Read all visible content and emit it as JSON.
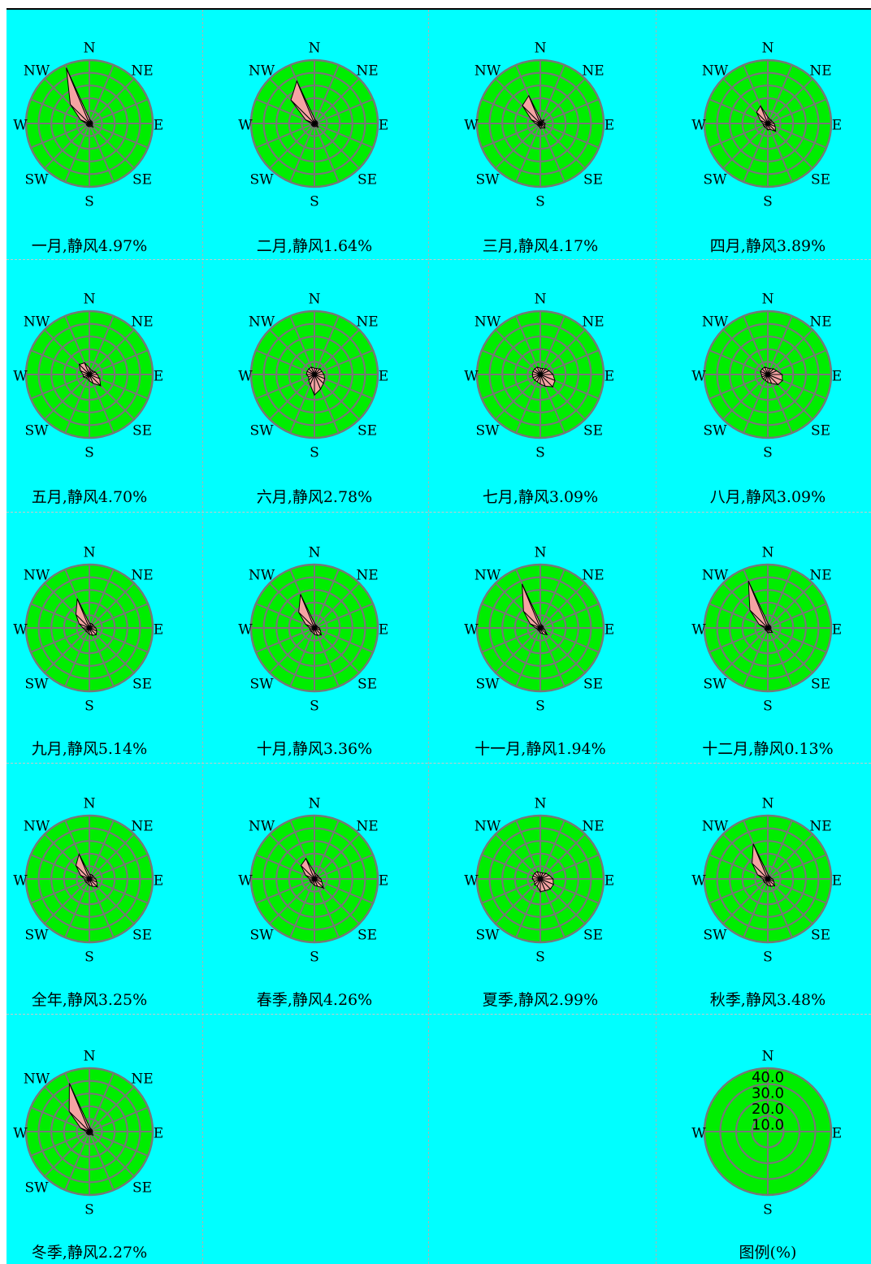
{
  "title": "",
  "colors": {
    "background": "#00ffff",
    "disc": "#00ee00",
    "grid": "#777777",
    "petal": "#f4a3a3",
    "petal_outline": "#000000"
  },
  "chart_data": {
    "type": "wind-rose",
    "directions": [
      "N",
      "NNE",
      "NE",
      "ENE",
      "E",
      "ESE",
      "SE",
      "SSE",
      "S",
      "SSW",
      "SW",
      "WSW",
      "W",
      "WNW",
      "NW",
      "NNW"
    ],
    "compass_labels": {
      "N": "N",
      "NE": "NE",
      "E": "E",
      "SE": "SE",
      "S": "S",
      "SW": "SW",
      "W": "W",
      "NW": "NW"
    },
    "rmax": 40,
    "panels": [
      {
        "label": "一月,静风4.97%",
        "values": [
          3,
          2,
          2,
          2,
          2,
          2,
          3,
          2,
          2,
          2,
          2,
          2,
          2,
          6,
          17,
          38
        ]
      },
      {
        "label": "二月,静风1.64%",
        "values": [
          3,
          2,
          2,
          2,
          2,
          2,
          3,
          2,
          2,
          2,
          2,
          2,
          2,
          6,
          21,
          29
        ]
      },
      {
        "label": "三月,静风4.17%",
        "values": [
          3,
          2,
          3,
          2,
          3,
          3,
          4,
          3,
          3,
          2,
          2,
          2,
          3,
          6,
          16,
          19
        ]
      },
      {
        "label": "四月,静风3.89%",
        "values": [
          4,
          3,
          3,
          3,
          4,
          5,
          7,
          4,
          4,
          3,
          3,
          3,
          3,
          5,
          10,
          12
        ]
      },
      {
        "label": "五月,静风4.70%",
        "values": [
          4,
          3,
          3,
          4,
          5,
          7,
          10,
          6,
          4,
          3,
          3,
          4,
          4,
          6,
          9,
          8
        ]
      },
      {
        "label": "六月,静风2.78%",
        "values": [
          4,
          4,
          5,
          5,
          6,
          7,
          8,
          10,
          13,
          7,
          5,
          4,
          5,
          5,
          5,
          5
        ]
      },
      {
        "label": "七月,静风3.09%",
        "values": [
          4,
          4,
          5,
          6,
          8,
          10,
          11,
          8,
          6,
          5,
          5,
          5,
          5,
          5,
          5,
          5
        ]
      },
      {
        "label": "八月,静风3.09%",
        "values": [
          4,
          4,
          5,
          6,
          9,
          10,
          9,
          6,
          5,
          4,
          4,
          4,
          4,
          5,
          5,
          5
        ]
      },
      {
        "label": "九月,静风5.14%",
        "values": [
          3,
          3,
          3,
          3,
          4,
          5,
          6,
          5,
          4,
          3,
          3,
          3,
          4,
          7,
          12,
          20
        ]
      },
      {
        "label": "十月,静风3.36%",
        "values": [
          3,
          2,
          2,
          2,
          3,
          4,
          6,
          5,
          4,
          3,
          3,
          3,
          3,
          6,
          14,
          23
        ]
      },
      {
        "label": "十一月,静风1.94%",
        "values": [
          3,
          2,
          2,
          2,
          2,
          3,
          6,
          4,
          3,
          2,
          2,
          2,
          3,
          7,
          15,
          30
        ]
      },
      {
        "label": "十二月,静风0.13%",
        "values": [
          3,
          2,
          2,
          2,
          2,
          2,
          4,
          3,
          3,
          2,
          2,
          2,
          2,
          6,
          16,
          32
        ]
      },
      {
        "label": "全年,静风3.25%",
        "values": [
          3,
          3,
          3,
          3,
          4,
          5,
          7,
          5,
          4,
          3,
          3,
          3,
          3,
          6,
          12,
          17
        ]
      },
      {
        "label": "春季,静风4.26%",
        "values": [
          4,
          3,
          3,
          3,
          4,
          5,
          8,
          5,
          4,
          3,
          3,
          3,
          3,
          6,
          12,
          14
        ]
      },
      {
        "label": "夏季,静风2.99%",
        "values": [
          4,
          4,
          5,
          6,
          8,
          9,
          9,
          8,
          8,
          5,
          5,
          4,
          5,
          5,
          5,
          5
        ]
      },
      {
        "label": "秋季,静风3.48%",
        "values": [
          3,
          2,
          2,
          2,
          3,
          4,
          6,
          5,
          4,
          3,
          3,
          3,
          3,
          7,
          14,
          24
        ]
      },
      {
        "label": "冬季,静风2.27%",
        "values": [
          3,
          2,
          2,
          2,
          2,
          2,
          3,
          2,
          2,
          2,
          2,
          2,
          2,
          6,
          18,
          33
        ]
      }
    ],
    "legend": {
      "label": "图例(%)",
      "ticks": [
        "10.0",
        "20.0",
        "30.0",
        "40.0"
      ],
      "compass_labels": {
        "N": "N",
        "E": "E",
        "S": "S",
        "W": "W"
      }
    }
  }
}
